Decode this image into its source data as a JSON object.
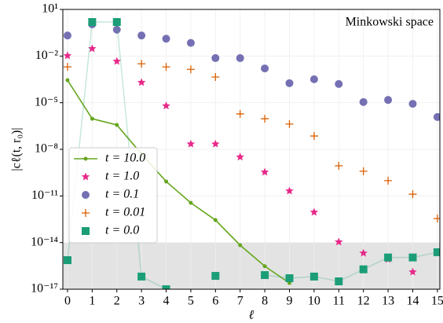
{
  "chart_data": {
    "type": "scatter",
    "annotation": "Minkowski space",
    "x_label": "ℓ",
    "y_label": "|cℓ(t, r₀)|",
    "x": [
      0,
      1,
      2,
      3,
      4,
      5,
      6,
      7,
      8,
      9,
      10,
      11,
      12,
      13,
      14,
      15
    ],
    "xlim": [
      -0.19,
      15.1
    ],
    "xticks": [
      0,
      1,
      2,
      3,
      4,
      5,
      6,
      7,
      8,
      9,
      10,
      11,
      12,
      13,
      14,
      15
    ],
    "ylim": [
      1e-17,
      10
    ],
    "yticks": [
      {
        "value": 10,
        "label": "10¹"
      },
      {
        "value": 0.01,
        "label": "10⁻²"
      },
      {
        "value": 1e-05,
        "label": "10⁻⁵"
      },
      {
        "value": 1e-08,
        "label": "10⁻⁸"
      },
      {
        "value": 1e-11,
        "label": "10⁻¹¹"
      },
      {
        "value": 1e-14,
        "label": "10⁻¹⁴"
      },
      {
        "value": 1e-17,
        "label": "10⁻¹⁷"
      }
    ],
    "log_y": true,
    "grid": true,
    "shade_ylim": [
      1e-17,
      1e-14
    ],
    "legend": "left",
    "series": [
      {
        "name": "t = 10.0",
        "color": "#66a61e",
        "marker": "line-dot",
        "values": [
          0.00028,
          9.3e-07,
          3.7e-07,
          5e-09,
          8.5e-11,
          3.6e-12,
          2.8e-13,
          6.8e-15,
          3e-16,
          2.5e-17,
          null,
          null,
          null,
          null,
          null,
          null
        ]
      },
      {
        "name": "t = 1.0",
        "color": "#e7298a",
        "marker": "star",
        "values": [
          0.0105,
          0.03,
          0.0046,
          0.0002,
          6.3e-06,
          2.2e-08,
          2.2e-08,
          3.2e-09,
          3.4e-10,
          2.1e-11,
          9e-13,
          1.1e-14,
          2.1e-15,
          8.4e-16,
          1.3e-16,
          null
        ]
      },
      {
        "name": "t = 0.1",
        "color": "#7570b3",
        "marker": "circle",
        "values": [
          0.21,
          1.1,
          0.5,
          0.21,
          0.13,
          0.07,
          0.0074,
          0.0074,
          0.0016,
          0.00018,
          0.00032,
          0.00016,
          1.1e-05,
          1.5e-05,
          8.5e-06,
          1.2e-06
        ]
      },
      {
        "name": "t = 0.01",
        "color": "#d95f02",
        "marker": "plus",
        "values": [
          0.002,
          null,
          null,
          0.0032,
          0.002,
          0.0014,
          0.00045,
          1.9e-06,
          9.3e-07,
          4.2e-07,
          7.2e-08,
          8.7e-10,
          3.9e-10,
          9.6e-11,
          1.3e-11,
          3.5e-13
        ]
      },
      {
        "name": "t = 0.0",
        "color": "#1b9e77",
        "marker": "square",
        "values": [
          7.4e-16,
          1.55,
          1.55,
          6.5e-17,
          1e-17,
          null,
          7.2e-17,
          null,
          8.1e-17,
          5.1e-17,
          6.5e-17,
          3.2e-17,
          1.9e-16,
          1.1e-15,
          1.1e-15,
          2.4e-15
        ]
      }
    ]
  }
}
